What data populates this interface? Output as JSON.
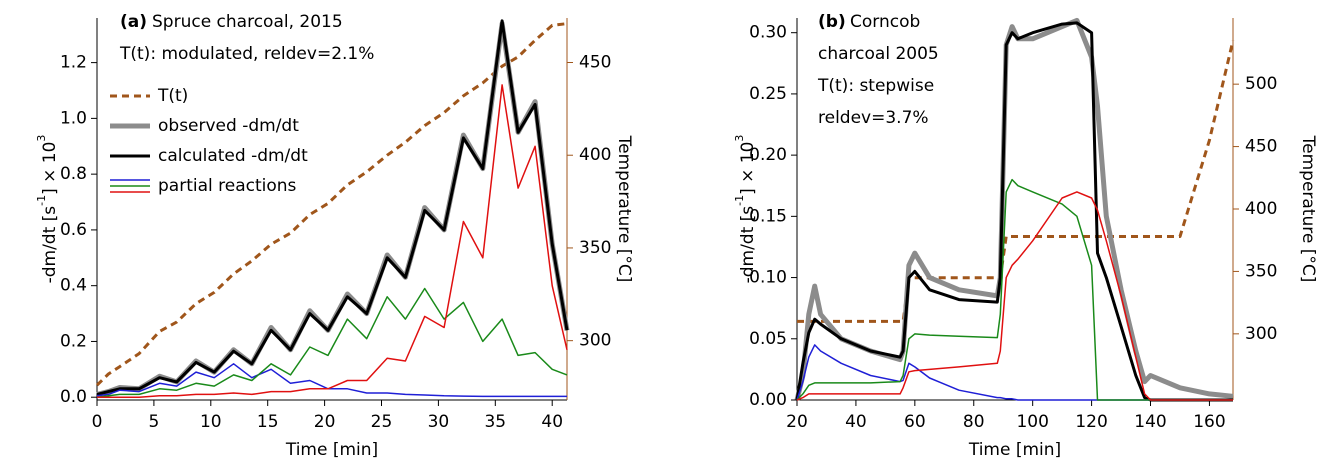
{
  "chart_data": [
    {
      "type": "line",
      "panel_label": "(a)",
      "annotations": [
        "Spruce charcoal, 2015",
        "T(t): modulated,  reldev=2.1%"
      ],
      "x_label": "Time  [min]",
      "y_label": [
        "-dm/dt  [s",
        "-1",
        "]  × 10",
        "3"
      ],
      "y2_label": "Temperature  [°C]",
      "xlim": [
        0,
        41.3
      ],
      "xticks": [
        0,
        5,
        10,
        15,
        20,
        25,
        30,
        35,
        40
      ],
      "ylim": [
        -0.01,
        1.36
      ],
      "yticks": [
        {
          "value": 0,
          "label": "0.0"
        },
        {
          "value": 0.2,
          "label": "0.2"
        },
        {
          "value": 0.4,
          "label": "0.4"
        },
        {
          "value": 0.6,
          "label": "0.6"
        },
        {
          "value": 0.8,
          "label": "0.8"
        },
        {
          "value": 1.0,
          "label": "1.0"
        },
        {
          "value": 1.2,
          "label": "1.2"
        }
      ],
      "y2lim": [
        268,
        474
      ],
      "y2ticks": [
        300,
        350,
        400,
        450
      ],
      "y2_color": "#a0561b",
      "x": [
        0,
        1,
        2,
        3.7,
        5.5,
        7,
        8.7,
        10.3,
        12,
        13.6,
        15.3,
        17,
        18.7,
        20.3,
        22,
        23.7,
        25.5,
        27.1,
        28.8,
        30.5,
        32.2,
        33.9,
        35.6,
        37,
        38.5,
        40,
        41.3
      ],
      "series": [
        {
          "name": "T(t)",
          "color": "#a0561b",
          "dashed": true,
          "axis": "y2",
          "values": [
            276,
            282,
            286,
            293,
            305,
            310,
            320,
            326,
            336,
            343,
            352,
            358,
            368,
            374,
            384,
            391,
            400,
            407,
            416,
            423,
            432,
            439,
            448,
            453,
            462,
            470,
            471
          ]
        },
        {
          "name": "observed  -dm/dt",
          "color": "#8c8c8c",
          "width": 5,
          "values": [
            0.01,
            0.02,
            0.035,
            0.03,
            0.075,
            0.055,
            0.13,
            0.09,
            0.17,
            0.12,
            0.25,
            0.17,
            0.31,
            0.24,
            0.37,
            0.3,
            0.51,
            0.43,
            0.68,
            0.6,
            0.94,
            0.82,
            1.34,
            0.95,
            1.06,
            0.55,
            0.24
          ]
        },
        {
          "name": "calculated -dm/dt",
          "color": "#000000",
          "width": 3,
          "values": [
            0.01,
            0.02,
            0.03,
            0.03,
            0.07,
            0.055,
            0.125,
            0.09,
            0.165,
            0.12,
            0.24,
            0.17,
            0.3,
            0.24,
            0.36,
            0.3,
            0.5,
            0.43,
            0.67,
            0.6,
            0.93,
            0.82,
            1.35,
            0.95,
            1.05,
            0.55,
            0.24
          ]
        },
        {
          "name": "partial reactions",
          "color": "#1f1fd6",
          "width": 1.5,
          "values": [
            0.005,
            0.01,
            0.025,
            0.02,
            0.05,
            0.04,
            0.09,
            0.07,
            0.12,
            0.07,
            0.1,
            0.05,
            0.06,
            0.03,
            0.03,
            0.015,
            0.015,
            0.01,
            0.008,
            0.005,
            0.004,
            0.003,
            0.003,
            0.003,
            0.003,
            0.003,
            0.003
          ]
        },
        {
          "color": "#1a8a1a",
          "width": 1.5,
          "values": [
            0,
            0.005,
            0.01,
            0.01,
            0.03,
            0.025,
            0.05,
            0.04,
            0.08,
            0.06,
            0.12,
            0.08,
            0.18,
            0.15,
            0.28,
            0.21,
            0.36,
            0.28,
            0.39,
            0.28,
            0.34,
            0.2,
            0.28,
            0.15,
            0.16,
            0.1,
            0.08
          ]
        },
        {
          "color": "#e01010",
          "width": 1.5,
          "values": [
            0,
            0,
            0,
            0,
            0.005,
            0.005,
            0.01,
            0.01,
            0.015,
            0.01,
            0.02,
            0.02,
            0.03,
            0.03,
            0.06,
            0.06,
            0.14,
            0.13,
            0.29,
            0.25,
            0.63,
            0.5,
            1.12,
            0.75,
            0.9,
            0.4,
            0.17
          ]
        }
      ]
    },
    {
      "type": "line",
      "panel_label": "(b)",
      "annotations": [
        "Corncob",
        "charcoal 2005",
        "T(t): stepwise",
        "reldev=3.7%"
      ],
      "x_label": "Time  [min]",
      "y_label": [
        "-dm/dt  [s",
        "-1",
        "]  × 10",
        "3"
      ],
      "y2_label": "Temperature  [°C]",
      "xlim": [
        20,
        168
      ],
      "xticks": [
        20,
        40,
        60,
        80,
        100,
        120,
        140,
        160
      ],
      "ylim": [
        0,
        0.312
      ],
      "yticks": [
        {
          "value": 0,
          "label": "0.00"
        },
        {
          "value": 0.05,
          "label": "0.05"
        },
        {
          "value": 0.1,
          "label": "0.10"
        },
        {
          "value": 0.15,
          "label": "0.15"
        },
        {
          "value": 0.2,
          "label": "0.20"
        },
        {
          "value": 0.25,
          "label": "0.25"
        },
        {
          "value": 0.3,
          "label": "0.30"
        }
      ],
      "y2lim": [
        247,
        553
      ],
      "y2ticks": [
        300,
        350,
        400,
        450,
        500
      ],
      "y2_color": "#a0561b",
      "x": [
        20,
        22,
        24,
        26,
        28,
        35,
        45,
        55,
        56,
        58,
        60,
        65,
        75,
        88,
        89,
        91,
        93,
        95,
        100,
        110,
        115,
        120,
        122,
        125,
        130,
        135,
        138,
        140,
        150,
        160,
        168
      ],
      "series": [
        {
          "color": "#a0561b",
          "dashed": true,
          "axis": "y2",
          "values": [
            310,
            310,
            310,
            310,
            310,
            310,
            310,
            310,
            310,
            345,
            345,
            345,
            345,
            345,
            345,
            378,
            378,
            378,
            378,
            378,
            378,
            378,
            378,
            378,
            378,
            378,
            378,
            378,
            378,
            455,
            535
          ]
        },
        {
          "color": "#8c8c8c",
          "width": 5,
          "values": [
            0,
            0.02,
            0.07,
            0.093,
            0.07,
            0.05,
            0.04,
            0.033,
            0.04,
            0.11,
            0.12,
            0.1,
            0.09,
            0.085,
            0.1,
            0.29,
            0.305,
            0.295,
            0.295,
            0.305,
            0.31,
            0.28,
            0.24,
            0.15,
            0.09,
            0.04,
            0.015,
            0.02,
            0.01,
            0.005,
            0.003
          ]
        },
        {
          "color": "#000000",
          "width": 3,
          "values": [
            0,
            0.03,
            0.055,
            0.066,
            0.062,
            0.05,
            0.04,
            0.035,
            0.04,
            0.1,
            0.105,
            0.09,
            0.082,
            0.08,
            0.1,
            0.29,
            0.3,
            0.295,
            0.3,
            0.307,
            0.308,
            0.3,
            0.12,
            0.1,
            0.06,
            0.02,
            0.002,
            0,
            0,
            0,
            0
          ]
        },
        {
          "color": "#1f1fd6",
          "width": 1.5,
          "values": [
            0,
            0.015,
            0.035,
            0.045,
            0.04,
            0.03,
            0.02,
            0.015,
            0.016,
            0.03,
            0.027,
            0.018,
            0.008,
            0.002,
            0.002,
            0.001,
            0.001,
            0,
            0,
            0,
            0,
            0,
            0,
            0,
            0,
            0,
            0,
            0,
            0,
            0,
            0
          ]
        },
        {
          "color": "#1a8a1a",
          "width": 1.5,
          "values": [
            0,
            0.005,
            0.012,
            0.014,
            0.014,
            0.014,
            0.014,
            0.015,
            0.02,
            0.05,
            0.054,
            0.053,
            0.052,
            0.051,
            0.07,
            0.17,
            0.18,
            0.175,
            0.17,
            0.16,
            0.15,
            0.11,
            0,
            0,
            0,
            0,
            0,
            0,
            0,
            0,
            0
          ]
        },
        {
          "color": "#e01010",
          "width": 1.5,
          "values": [
            0,
            0.002,
            0.005,
            0.005,
            0.005,
            0.005,
            0.005,
            0.005,
            0.01,
            0.023,
            0.024,
            0.025,
            0.027,
            0.03,
            0.04,
            0.1,
            0.11,
            0.115,
            0.13,
            0.165,
            0.17,
            0.165,
            0.155,
            0.13,
            0.085,
            0.035,
            0.005,
            0,
            0,
            0,
            0
          ]
        }
      ]
    }
  ]
}
